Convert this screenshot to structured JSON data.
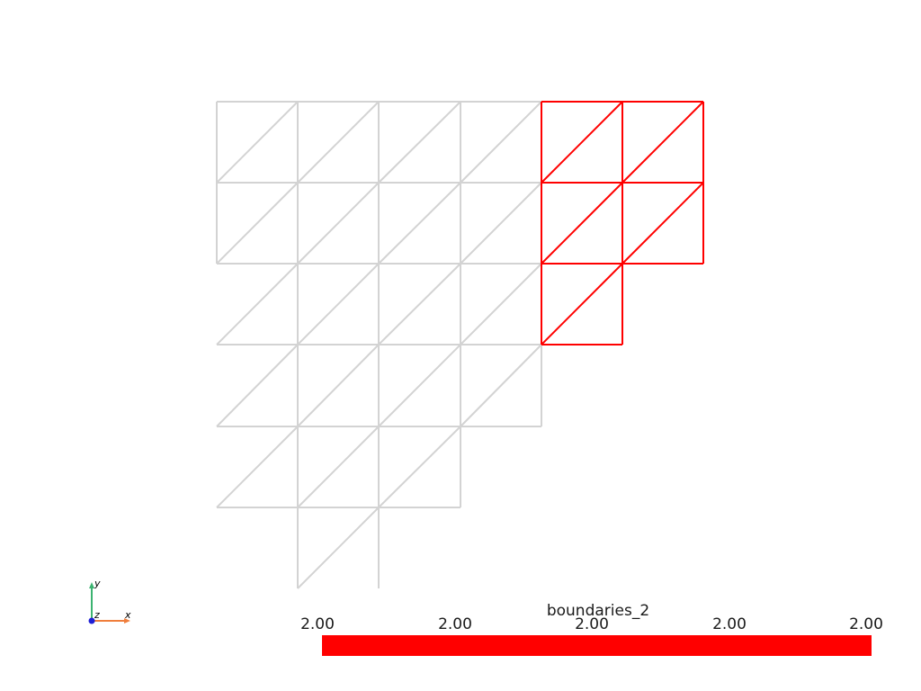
{
  "scalar_bar": {
    "title": "boundaries_2",
    "color": "#ff0000",
    "ticks": [
      "2.00",
      "2.00",
      "2.00",
      "2.00",
      "2.00"
    ]
  },
  "mesh": {
    "base_color": "#d3d3d3",
    "highlight_color": "#ff0000"
  },
  "axes": {
    "x_label": "x",
    "y_label": "y",
    "z_label": "z",
    "x_color": "#f07e3c",
    "y_color": "#3cb371",
    "z_color": "#1f1fd6"
  }
}
